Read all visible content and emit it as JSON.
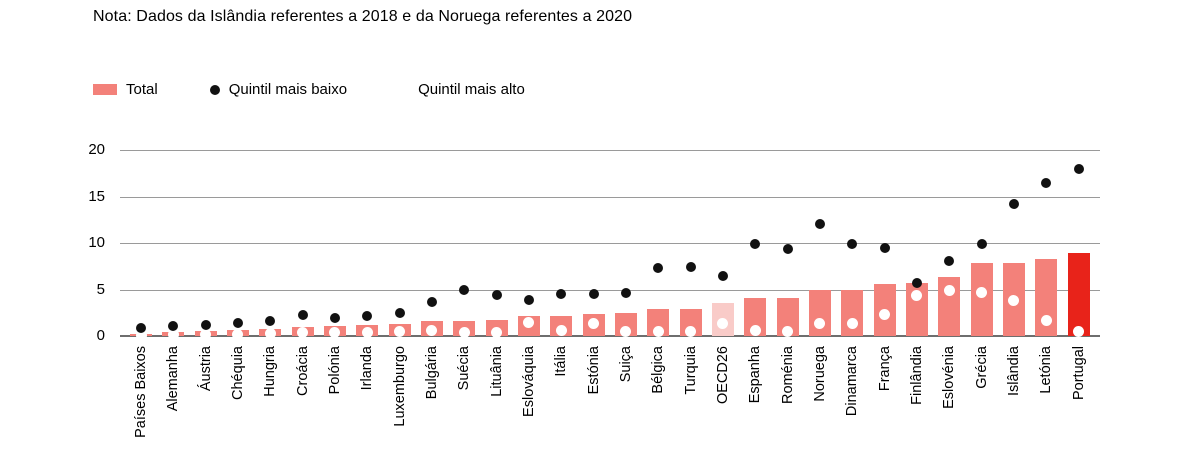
{
  "note": "Nota: Dados da Islândia referentes a 2018 e da Noruega referentes a 2020",
  "legend": {
    "total": "Total",
    "low": "Quintil mais baixo",
    "high": "Quintil mais alto"
  },
  "colors": {
    "bar": "#f3817a",
    "bar_oecd": "#f9cbc8",
    "bar_portugal": "#e8231a",
    "dot_low": "#111111",
    "dot_high": "#ffffff",
    "grid": "#9a9a9a",
    "axis": "#6e6e6e",
    "text": "#000000"
  },
  "chart_data": {
    "type": "bar",
    "title": "",
    "xlabel": "",
    "ylabel": "",
    "ylim": [
      0,
      20
    ],
    "yticks": [
      0,
      5,
      10,
      15,
      20
    ],
    "grid": true,
    "legend_position": "top-left",
    "categories": [
      "Países Baixos",
      "Alemanha",
      "Áustria",
      "Chéquia",
      "Hungria",
      "Croácia",
      "Polónia",
      "Irlanda",
      "Luxemburgo",
      "Bulgária",
      "Suécia",
      "Lituânia",
      "Eslováquia",
      "Itália",
      "Estónia",
      "Suiça",
      "Bélgica",
      "Turquia",
      "OECD26",
      "Espanha",
      "Roménia",
      "Noruega",
      "Dinamarca",
      "França",
      "Finlândia",
      "Eslovénia",
      "Grécia",
      "Islândia",
      "Letónia",
      "Portugal"
    ],
    "series": [
      {
        "name": "Total",
        "type": "bar",
        "values": [
          0.2,
          0.4,
          0.5,
          0.6,
          0.7,
          1.0,
          1.1,
          1.2,
          1.3,
          1.6,
          1.6,
          1.7,
          2.1,
          2.1,
          2.4,
          2.5,
          2.9,
          2.9,
          3.5,
          4.1,
          4.1,
          4.9,
          4.9,
          5.6,
          5.7,
          6.3,
          7.9,
          7.9,
          8.3,
          8.9
        ]
      },
      {
        "name": "Quintil mais baixo",
        "type": "scatter",
        "marker": "black-dot",
        "values": [
          0.9,
          1.1,
          1.2,
          1.4,
          1.6,
          2.3,
          1.9,
          2.2,
          2.5,
          3.7,
          4.9,
          4.4,
          3.9,
          4.5,
          4.5,
          4.6,
          7.3,
          7.4,
          6.4,
          9.9,
          9.4,
          12.0,
          9.9,
          9.5,
          5.7,
          8.1,
          9.9,
          14.2,
          16.5,
          18.0
        ]
      },
      {
        "name": "Quintil mais alto",
        "type": "scatter",
        "marker": "white-dot",
        "values": [
          0.1,
          0.2,
          0.2,
          0.2,
          0.3,
          0.4,
          0.4,
          0.4,
          0.5,
          0.6,
          0.4,
          0.4,
          1.4,
          0.6,
          1.3,
          0.5,
          0.5,
          0.5,
          1.3,
          0.6,
          0.5,
          1.3,
          1.3,
          2.3,
          4.4,
          4.9,
          4.7,
          3.8,
          1.7,
          0.5
        ]
      }
    ],
    "highlight": {
      "OECD26": "bar_oecd",
      "Portugal": "bar_portugal"
    }
  }
}
